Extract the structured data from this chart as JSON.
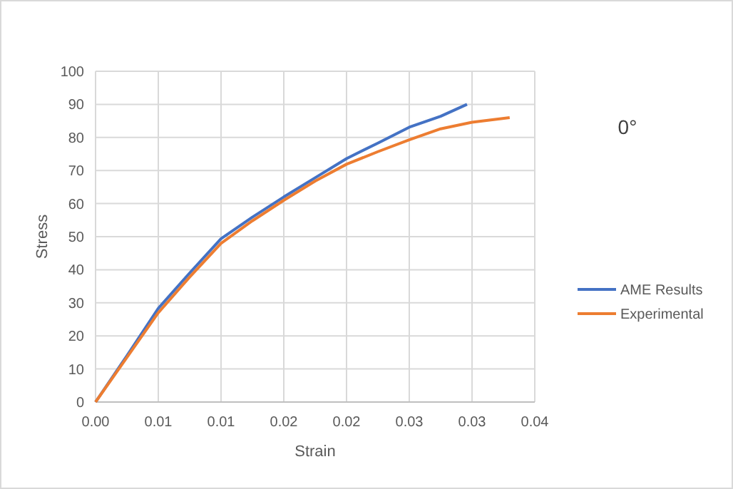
{
  "chart_data": {
    "type": "line",
    "title": "0°",
    "xlabel": "Strain",
    "ylabel": "Stress",
    "xlim": [
      0,
      0.035
    ],
    "ylim": [
      0,
      100
    ],
    "xticks": [
      {
        "value": 0,
        "label": "0.00"
      },
      {
        "value": 0.005,
        "label": "0.01"
      },
      {
        "value": 0.01,
        "label": "0.01"
      },
      {
        "value": 0.015,
        "label": "0.02"
      },
      {
        "value": 0.02,
        "label": "0.02"
      },
      {
        "value": 0.025,
        "label": "0.03"
      },
      {
        "value": 0.03,
        "label": "0.03"
      },
      {
        "value": 0.035,
        "label": "0.04"
      }
    ],
    "yticks": [
      0,
      10,
      20,
      30,
      40,
      50,
      60,
      70,
      80,
      90,
      100
    ],
    "grid": true,
    "legend": "right",
    "marker": "none",
    "line_style": "solid",
    "series": [
      {
        "name": "AME Results",
        "color": "#4472c4",
        "x": [
          0,
          0.0025,
          0.005,
          0.0075,
          0.01,
          0.0125,
          0.015,
          0.0175,
          0.02,
          0.0225,
          0.025,
          0.0275,
          0.0296
        ],
        "values": [
          0,
          14,
          28.3,
          39,
          49.4,
          55.9,
          62,
          67.8,
          73.6,
          78.3,
          83.1,
          86.4,
          90
        ]
      },
      {
        "name": "Experimental",
        "color": "#ed7d31",
        "x": [
          0,
          0.0025,
          0.005,
          0.0075,
          0.01,
          0.0125,
          0.015,
          0.0175,
          0.02,
          0.0225,
          0.025,
          0.0275,
          0.03,
          0.033
        ],
        "values": [
          0,
          13.5,
          27,
          37.8,
          48,
          54.8,
          61,
          66.8,
          71.9,
          75.7,
          79.3,
          82.6,
          84.6,
          86
        ]
      }
    ]
  }
}
